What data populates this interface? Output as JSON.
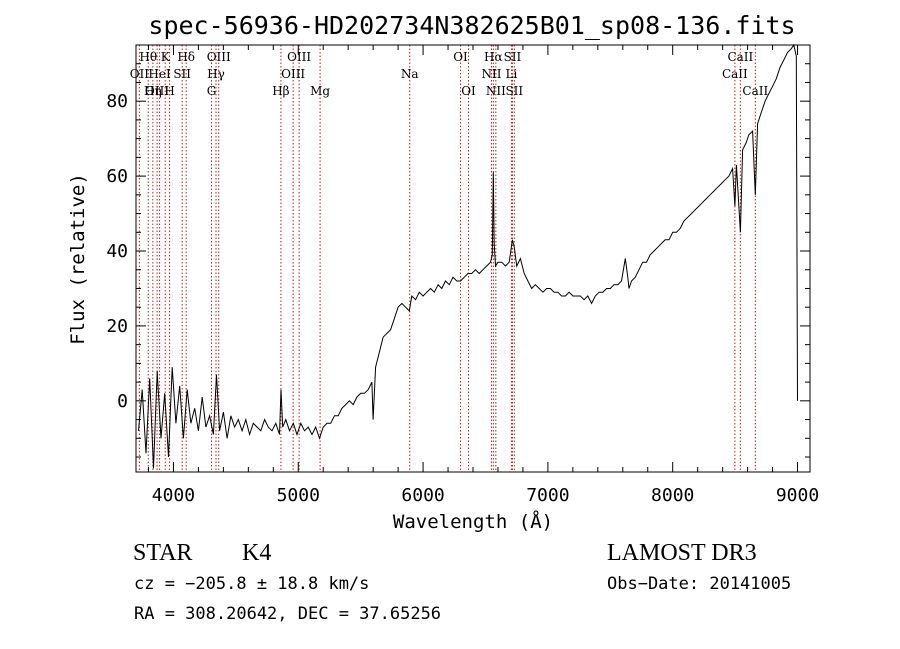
{
  "chart_data": {
    "type": "line",
    "title": "spec-56936-HD202734N382625B01_sp08-136.fits",
    "xlabel": "Wavelength (Å)",
    "ylabel": "Flux (relative)",
    "xlim": [
      3700,
      9100
    ],
    "ylim": [
      -19,
      95
    ],
    "xticks": [
      4000,
      5000,
      6000,
      7000,
      8000,
      9000
    ],
    "yticks": [
      0,
      20,
      40,
      60,
      80
    ],
    "x_minor_step": 200,
    "y_minor_step": 5,
    "series": [
      {
        "name": "spectrum",
        "color": "#000000",
        "points": [
          [
            3720,
            -8
          ],
          [
            3750,
            3
          ],
          [
            3780,
            -14
          ],
          [
            3810,
            6
          ],
          [
            3840,
            -18
          ],
          [
            3870,
            8
          ],
          [
            3900,
            -10
          ],
          [
            3930,
            2
          ],
          [
            3960,
            -15
          ],
          [
            3990,
            9
          ],
          [
            4020,
            -6
          ],
          [
            4050,
            4
          ],
          [
            4080,
            -10
          ],
          [
            4110,
            3
          ],
          [
            4140,
            -6
          ],
          [
            4170,
            -2
          ],
          [
            4200,
            -8
          ],
          [
            4230,
            1
          ],
          [
            4260,
            -7
          ],
          [
            4290,
            -4
          ],
          [
            4320,
            -9
          ],
          [
            4345,
            7
          ],
          [
            4370,
            -8
          ],
          [
            4400,
            -3
          ],
          [
            4430,
            -10
          ],
          [
            4460,
            -4
          ],
          [
            4490,
            -7
          ],
          [
            4520,
            -5
          ],
          [
            4550,
            -8
          ],
          [
            4580,
            -5
          ],
          [
            4610,
            -9
          ],
          [
            4640,
            -6
          ],
          [
            4670,
            -7
          ],
          [
            4700,
            -8
          ],
          [
            4730,
            -5
          ],
          [
            4760,
            -7
          ],
          [
            4790,
            -8
          ],
          [
            4820,
            -6
          ],
          [
            4850,
            -9
          ],
          [
            4862,
            3
          ],
          [
            4875,
            -7
          ],
          [
            4900,
            -5
          ],
          [
            4930,
            -8
          ],
          [
            4960,
            -6
          ],
          [
            4990,
            -9
          ],
          [
            5020,
            -6
          ],
          [
            5050,
            -8
          ],
          [
            5080,
            -7
          ],
          [
            5110,
            -9
          ],
          [
            5140,
            -7
          ],
          [
            5170,
            -10
          ],
          [
            5200,
            -7
          ],
          [
            5230,
            -6
          ],
          [
            5260,
            -6
          ],
          [
            5290,
            -4
          ],
          [
            5320,
            -4
          ],
          [
            5350,
            -2
          ],
          [
            5380,
            -1
          ],
          [
            5410,
            0
          ],
          [
            5440,
            -1
          ],
          [
            5470,
            1
          ],
          [
            5500,
            2
          ],
          [
            5530,
            2
          ],
          [
            5560,
            3
          ],
          [
            5590,
            5
          ],
          [
            5600,
            -5
          ],
          [
            5620,
            9
          ],
          [
            5650,
            13
          ],
          [
            5680,
            17
          ],
          [
            5710,
            18
          ],
          [
            5740,
            19
          ],
          [
            5770,
            22
          ],
          [
            5800,
            25
          ],
          [
            5830,
            26
          ],
          [
            5860,
            25
          ],
          [
            5890,
            24
          ],
          [
            5910,
            28
          ],
          [
            5940,
            27
          ],
          [
            5970,
            29
          ],
          [
            6000,
            28
          ],
          [
            6030,
            29
          ],
          [
            6060,
            30
          ],
          [
            6090,
            29
          ],
          [
            6120,
            31
          ],
          [
            6150,
            30
          ],
          [
            6180,
            32
          ],
          [
            6210,
            31
          ],
          [
            6240,
            33
          ],
          [
            6270,
            32
          ],
          [
            6300,
            32
          ],
          [
            6330,
            33
          ],
          [
            6360,
            34
          ],
          [
            6390,
            34
          ],
          [
            6420,
            35
          ],
          [
            6450,
            34
          ],
          [
            6480,
            35
          ],
          [
            6510,
            36
          ],
          [
            6540,
            37
          ],
          [
            6555,
            39
          ],
          [
            6563,
            61
          ],
          [
            6570,
            42
          ],
          [
            6580,
            36
          ],
          [
            6600,
            37
          ],
          [
            6630,
            37
          ],
          [
            6660,
            36
          ],
          [
            6690,
            37
          ],
          [
            6716,
            43
          ],
          [
            6731,
            41
          ],
          [
            6750,
            36
          ],
          [
            6780,
            38
          ],
          [
            6810,
            34
          ],
          [
            6840,
            32
          ],
          [
            6870,
            30
          ],
          [
            6900,
            31
          ],
          [
            6930,
            30
          ],
          [
            6960,
            29
          ],
          [
            6990,
            30
          ],
          [
            7020,
            30
          ],
          [
            7050,
            29
          ],
          [
            7080,
            29
          ],
          [
            7110,
            28
          ],
          [
            7140,
            28
          ],
          [
            7170,
            29
          ],
          [
            7200,
            28
          ],
          [
            7230,
            28
          ],
          [
            7260,
            28
          ],
          [
            7290,
            27
          ],
          [
            7320,
            28
          ],
          [
            7350,
            26
          ],
          [
            7380,
            28
          ],
          [
            7410,
            29
          ],
          [
            7440,
            29
          ],
          [
            7470,
            30
          ],
          [
            7500,
            30
          ],
          [
            7530,
            31
          ],
          [
            7560,
            31
          ],
          [
            7590,
            32
          ],
          [
            7620,
            38
          ],
          [
            7640,
            33
          ],
          [
            7650,
            30
          ],
          [
            7670,
            32
          ],
          [
            7700,
            33
          ],
          [
            7730,
            35
          ],
          [
            7760,
            37
          ],
          [
            7790,
            37
          ],
          [
            7820,
            39
          ],
          [
            7850,
            40
          ],
          [
            7880,
            41
          ],
          [
            7910,
            42
          ],
          [
            7940,
            43
          ],
          [
            7970,
            43
          ],
          [
            8000,
            45
          ],
          [
            8030,
            45
          ],
          [
            8060,
            46
          ],
          [
            8090,
            48
          ],
          [
            8120,
            49
          ],
          [
            8150,
            50
          ],
          [
            8180,
            51
          ],
          [
            8210,
            52
          ],
          [
            8240,
            53
          ],
          [
            8270,
            54
          ],
          [
            8300,
            55
          ],
          [
            8330,
            56
          ],
          [
            8360,
            57
          ],
          [
            8390,
            58
          ],
          [
            8420,
            59
          ],
          [
            8450,
            60
          ],
          [
            8480,
            62
          ],
          [
            8498,
            52
          ],
          [
            8510,
            63
          ],
          [
            8542,
            45
          ],
          [
            8560,
            67
          ],
          [
            8590,
            69
          ],
          [
            8610,
            71
          ],
          [
            8640,
            72
          ],
          [
            8662,
            55
          ],
          [
            8680,
            74
          ],
          [
            8710,
            77
          ],
          [
            8740,
            80
          ],
          [
            8770,
            82
          ],
          [
            8800,
            84
          ],
          [
            8830,
            86
          ],
          [
            8860,
            89
          ],
          [
            8890,
            91
          ],
          [
            8920,
            93
          ],
          [
            8950,
            94
          ],
          [
            8970,
            95
          ],
          [
            8990,
            92
          ],
          [
            9000,
            0
          ]
        ]
      }
    ],
    "line_marks": [
      {
        "label": "Hθ",
        "wavelength": 3798,
        "row": 1
      },
      {
        "label": "OII",
        "wavelength": 3727,
        "row": 2
      },
      {
        "label": "OIII",
        "wavelength": 3869,
        "row": 3
      },
      {
        "label": "Hη",
        "wavelength": 3835,
        "row": 3
      },
      {
        "label": "K",
        "wavelength": 3934,
        "row": 1
      },
      {
        "label": "HeI",
        "wavelength": 3889,
        "row": 2
      },
      {
        "label": "H",
        "wavelength": 3969,
        "row": 3
      },
      {
        "label": "SII",
        "wavelength": 4070,
        "row": 2
      },
      {
        "label": "Hδ",
        "wavelength": 4102,
        "row": 1
      },
      {
        "label": "OIII",
        "wavelength": 4363,
        "row": 1
      },
      {
        "label": "Hγ",
        "wavelength": 4341,
        "row": 2
      },
      {
        "label": "G",
        "wavelength": 4305,
        "row": 3
      },
      {
        "label": "Hβ",
        "wavelength": 4861,
        "row": 3
      },
      {
        "label": "OIII",
        "wavelength": 5007,
        "row": 1
      },
      {
        "label": "OIII",
        "wavelength": 4959,
        "row": 2
      },
      {
        "label": "Mg",
        "wavelength": 5175,
        "row": 3
      },
      {
        "label": "Na",
        "wavelength": 5893,
        "row": 2
      },
      {
        "label": "OI",
        "wavelength": 6300,
        "row": 1
      },
      {
        "label": "OI",
        "wavelength": 6364,
        "row": 3
      },
      {
        "label": "Hα",
        "wavelength": 6563,
        "row": 1
      },
      {
        "label": "NII",
        "wavelength": 6548,
        "row": 2
      },
      {
        "label": "NII",
        "wavelength": 6583,
        "row": 3
      },
      {
        "label": "SII",
        "wavelength": 6716,
        "row": 1
      },
      {
        "label": "Li",
        "wavelength": 6708,
        "row": 2
      },
      {
        "label": "SII",
        "wavelength": 6731,
        "row": 3
      },
      {
        "label": "CaII",
        "wavelength": 8542,
        "row": 1
      },
      {
        "label": "CaII",
        "wavelength": 8498,
        "row": 2
      },
      {
        "label": "CaII",
        "wavelength": 8662,
        "row": 3
      }
    ]
  },
  "info": {
    "class": "STAR",
    "subclass": "K4",
    "survey": "LAMOST DR3",
    "cz": "cz = −205.8 ± 18.8 km/s",
    "obs_date": "Obs−Date: 20141005",
    "coords": "RA = 308.20642, DEC =  37.65256"
  }
}
